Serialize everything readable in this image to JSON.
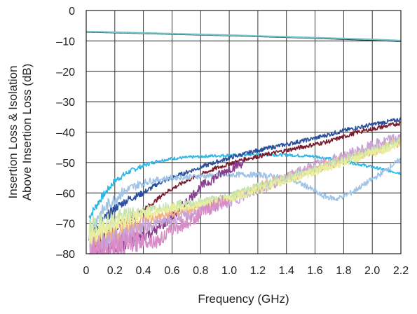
{
  "chart_data": {
    "type": "line",
    "title": "",
    "xlabel": "Frequency (GHz)",
    "ylabel": [
      "Insertion Loss & Isolation",
      "Above Insertion Loss (dB)"
    ],
    "xlim": [
      0,
      2.2
    ],
    "ylim": [
      -80,
      0
    ],
    "grid": true,
    "legend": "none",
    "x_ticks": [
      0,
      0.2,
      0.4,
      0.6,
      0.8,
      1.0,
      1.2,
      1.4,
      1.6,
      1.8,
      2.0,
      2.2
    ],
    "x_tick_labels": [
      "0",
      "0.2",
      "0.4",
      "0.6",
      "0.8",
      "1.0",
      "1.2",
      "1.4",
      "1.6",
      "1.8",
      "2.0",
      "2.2"
    ],
    "y_ticks": [
      0,
      -10,
      -20,
      -30,
      -40,
      -50,
      -60,
      -70,
      -80
    ],
    "y_tick_labels": [
      "0",
      "–10",
      "–20",
      "–30",
      "–40",
      "–50",
      "–60",
      "–70",
      "–80"
    ],
    "series": [
      {
        "color": "#1a1a1a",
        "noise": 0,
        "x": [
          0,
          0.5,
          1.0,
          1.5,
          2.0,
          2.2
        ],
        "y": [
          -7,
          -7.6,
          -8.2,
          -8.9,
          -9.7,
          -10.1
        ]
      },
      {
        "color": "#6ec4c8",
        "noise": 0,
        "x": [
          0,
          0.5,
          1.0,
          1.5,
          2.0,
          2.2
        ],
        "y": [
          -6.9,
          -7.5,
          -8.1,
          -8.8,
          -9.5,
          -9.9
        ]
      },
      {
        "color": "#29b6e8",
        "noise": 0.5,
        "x": [
          0.02,
          0.1,
          0.2,
          0.3,
          0.4,
          0.5,
          0.6,
          0.8,
          1.0,
          1.2,
          1.4,
          1.6,
          1.8,
          2.0,
          2.2
        ],
        "y": [
          -68,
          -62,
          -56,
          -53,
          -51,
          -49.5,
          -48.7,
          -48,
          -47.6,
          -47.4,
          -47.5,
          -48,
          -49.5,
          -51.5,
          -53.5
        ]
      },
      {
        "color": "#2b4f9e",
        "noise": 0.7,
        "x": [
          0.02,
          0.1,
          0.2,
          0.3,
          0.4,
          0.5,
          0.6,
          0.8,
          1.0,
          1.2,
          1.4,
          1.6,
          1.8,
          2.0,
          2.2
        ],
        "y": [
          -74,
          -70,
          -65,
          -62,
          -60,
          -57,
          -55,
          -51.5,
          -48.5,
          -46,
          -44,
          -42,
          -39.5,
          -37.5,
          -35.8
        ]
      },
      {
        "color": "#7a1c2e",
        "noise": 0.7,
        "x": [
          0.05,
          0.15,
          0.25,
          0.35,
          0.45,
          0.55,
          0.7,
          0.9,
          1.1,
          1.3,
          1.5,
          1.7,
          1.9,
          2.1,
          2.2
        ],
        "y": [
          -77,
          -73,
          -70,
          -67,
          -64,
          -60,
          -56,
          -52,
          -49,
          -47,
          -45,
          -43,
          -40,
          -38,
          -37
        ]
      },
      {
        "color": "#9fc3e6",
        "noise": 0.9,
        "x": [
          0.05,
          0.15,
          0.25,
          0.35,
          0.45,
          0.6,
          0.8,
          1.0,
          1.2,
          1.4,
          1.55,
          1.65,
          1.75,
          1.85,
          1.95,
          2.05,
          2.15,
          2.2
        ],
        "y": [
          -70,
          -64,
          -60,
          -57.5,
          -56,
          -55,
          -54.5,
          -54,
          -54,
          -55,
          -58,
          -61,
          -62,
          -60,
          -57,
          -54,
          -50.5,
          -49
        ]
      },
      {
        "color": "#8a3d8f",
        "noise": 1.6,
        "x": [
          0.02,
          0.1,
          0.2,
          0.3,
          0.4,
          0.5,
          0.6,
          0.7,
          0.8,
          0.9,
          1.0,
          1.1
        ],
        "y": [
          -80,
          -79,
          -77,
          -76,
          -74,
          -72,
          -68,
          -63,
          -58,
          -55,
          -52,
          -50
        ]
      },
      {
        "color": "#f5b27a",
        "noise": 1.8,
        "x": [
          0.02,
          0.1,
          0.2,
          0.3,
          0.4,
          0.5,
          0.6,
          0.8,
          1.0,
          1.2,
          1.4,
          1.6,
          1.8,
          2.0,
          2.2
        ],
        "y": [
          -80,
          -76,
          -73,
          -71,
          -69,
          -68,
          -67,
          -65,
          -62,
          -58,
          -55,
          -52,
          -49,
          -46,
          -43
        ]
      },
      {
        "color": "#c9a3d6",
        "noise": 1.8,
        "x": [
          0.02,
          0.1,
          0.2,
          0.3,
          0.4,
          0.5,
          0.6,
          0.8,
          1.0,
          1.2,
          1.4,
          1.6,
          1.8,
          2.0,
          2.2
        ],
        "y": [
          -79,
          -77,
          -75,
          -73,
          -71,
          -70,
          -69,
          -66,
          -63,
          -59,
          -55,
          -51,
          -48,
          -44.5,
          -41.5
        ]
      },
      {
        "color": "#c6e3b2",
        "noise": 1.4,
        "x": [
          0.02,
          0.1,
          0.2,
          0.3,
          0.4,
          0.5,
          0.6,
          0.8,
          1.0,
          1.2,
          1.4,
          1.6,
          1.8,
          2.0,
          2.2
        ],
        "y": [
          -72,
          -70,
          -69,
          -67,
          -66,
          -65,
          -64,
          -63,
          -61,
          -58,
          -55,
          -52,
          -49,
          -46,
          -43
        ]
      },
      {
        "color": "#e9ee9c",
        "noise": 1.4,
        "x": [
          0.02,
          0.1,
          0.2,
          0.3,
          0.4,
          0.5,
          0.6,
          0.8,
          1.0,
          1.2,
          1.4,
          1.6,
          1.8,
          2.0,
          2.2
        ],
        "y": [
          -74,
          -72,
          -70,
          -68.5,
          -67,
          -66,
          -65,
          -64,
          -62,
          -59,
          -56,
          -53,
          -50,
          -47,
          -44
        ]
      },
      {
        "color": "#d98bc8",
        "noise": 2.2,
        "x": [
          0.02,
          0.1,
          0.2,
          0.3,
          0.4,
          0.5,
          0.6,
          0.7,
          0.8,
          0.9,
          1.0
        ],
        "y": [
          -78,
          -80,
          -78,
          -77,
          -75,
          -76,
          -72,
          -70,
          -67,
          -64,
          -62
        ]
      }
    ]
  }
}
